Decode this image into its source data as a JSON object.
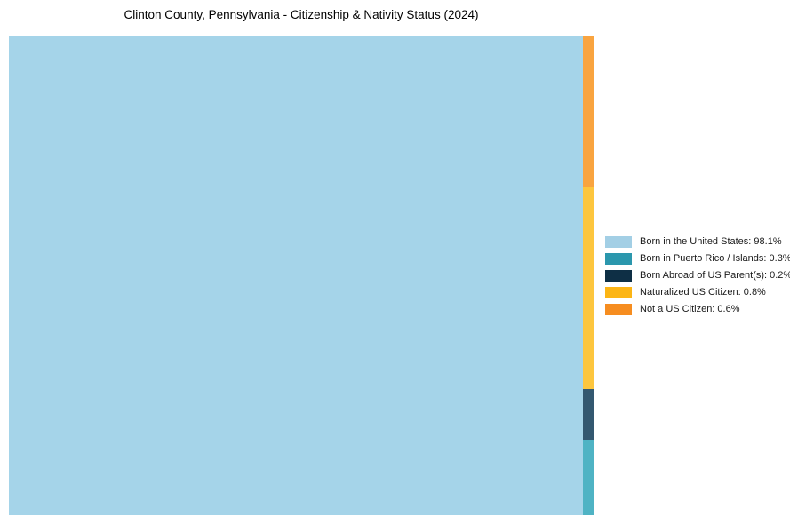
{
  "chart_data": {
    "type": "treemap",
    "title": "Clinton County, Pennsylvania - Citizenship & Nativity Status (2024)",
    "categories": [
      "Born in the United States",
      "Born in Puerto Rico / Islands",
      "Born Abroad of US Parent(s)",
      "Naturalized US Citizen",
      "Not a US Citizen"
    ],
    "values": [
      98.1,
      0.3,
      0.2,
      0.8,
      0.6
    ],
    "unit": "%",
    "tile_colors": [
      "#a5d4e9",
      "#4fb3c4",
      "#335870",
      "#fdc63e",
      "#f9a440"
    ],
    "legend_colors": [
      "#a3cfe5",
      "#2b97ad",
      "#0e2f45",
      "#fcb515",
      "#f68d20"
    ],
    "legend_labels": [
      "Born in the United States: 98.1%",
      "Born in Puerto Rico / Islands: 0.3%",
      "Born Abroad of US Parent(s): 0.2%",
      "Naturalized US Citizen: 0.8%",
      "Not a US Citizen: 0.6%"
    ],
    "layout": {
      "background": "#ffffff",
      "main_category_index": 0,
      "strip_side": "right",
      "strip_order_top_to_bottom_indices": [
        4,
        3,
        2,
        1
      ],
      "legend_position": "right-middle",
      "grid": "off"
    }
  }
}
